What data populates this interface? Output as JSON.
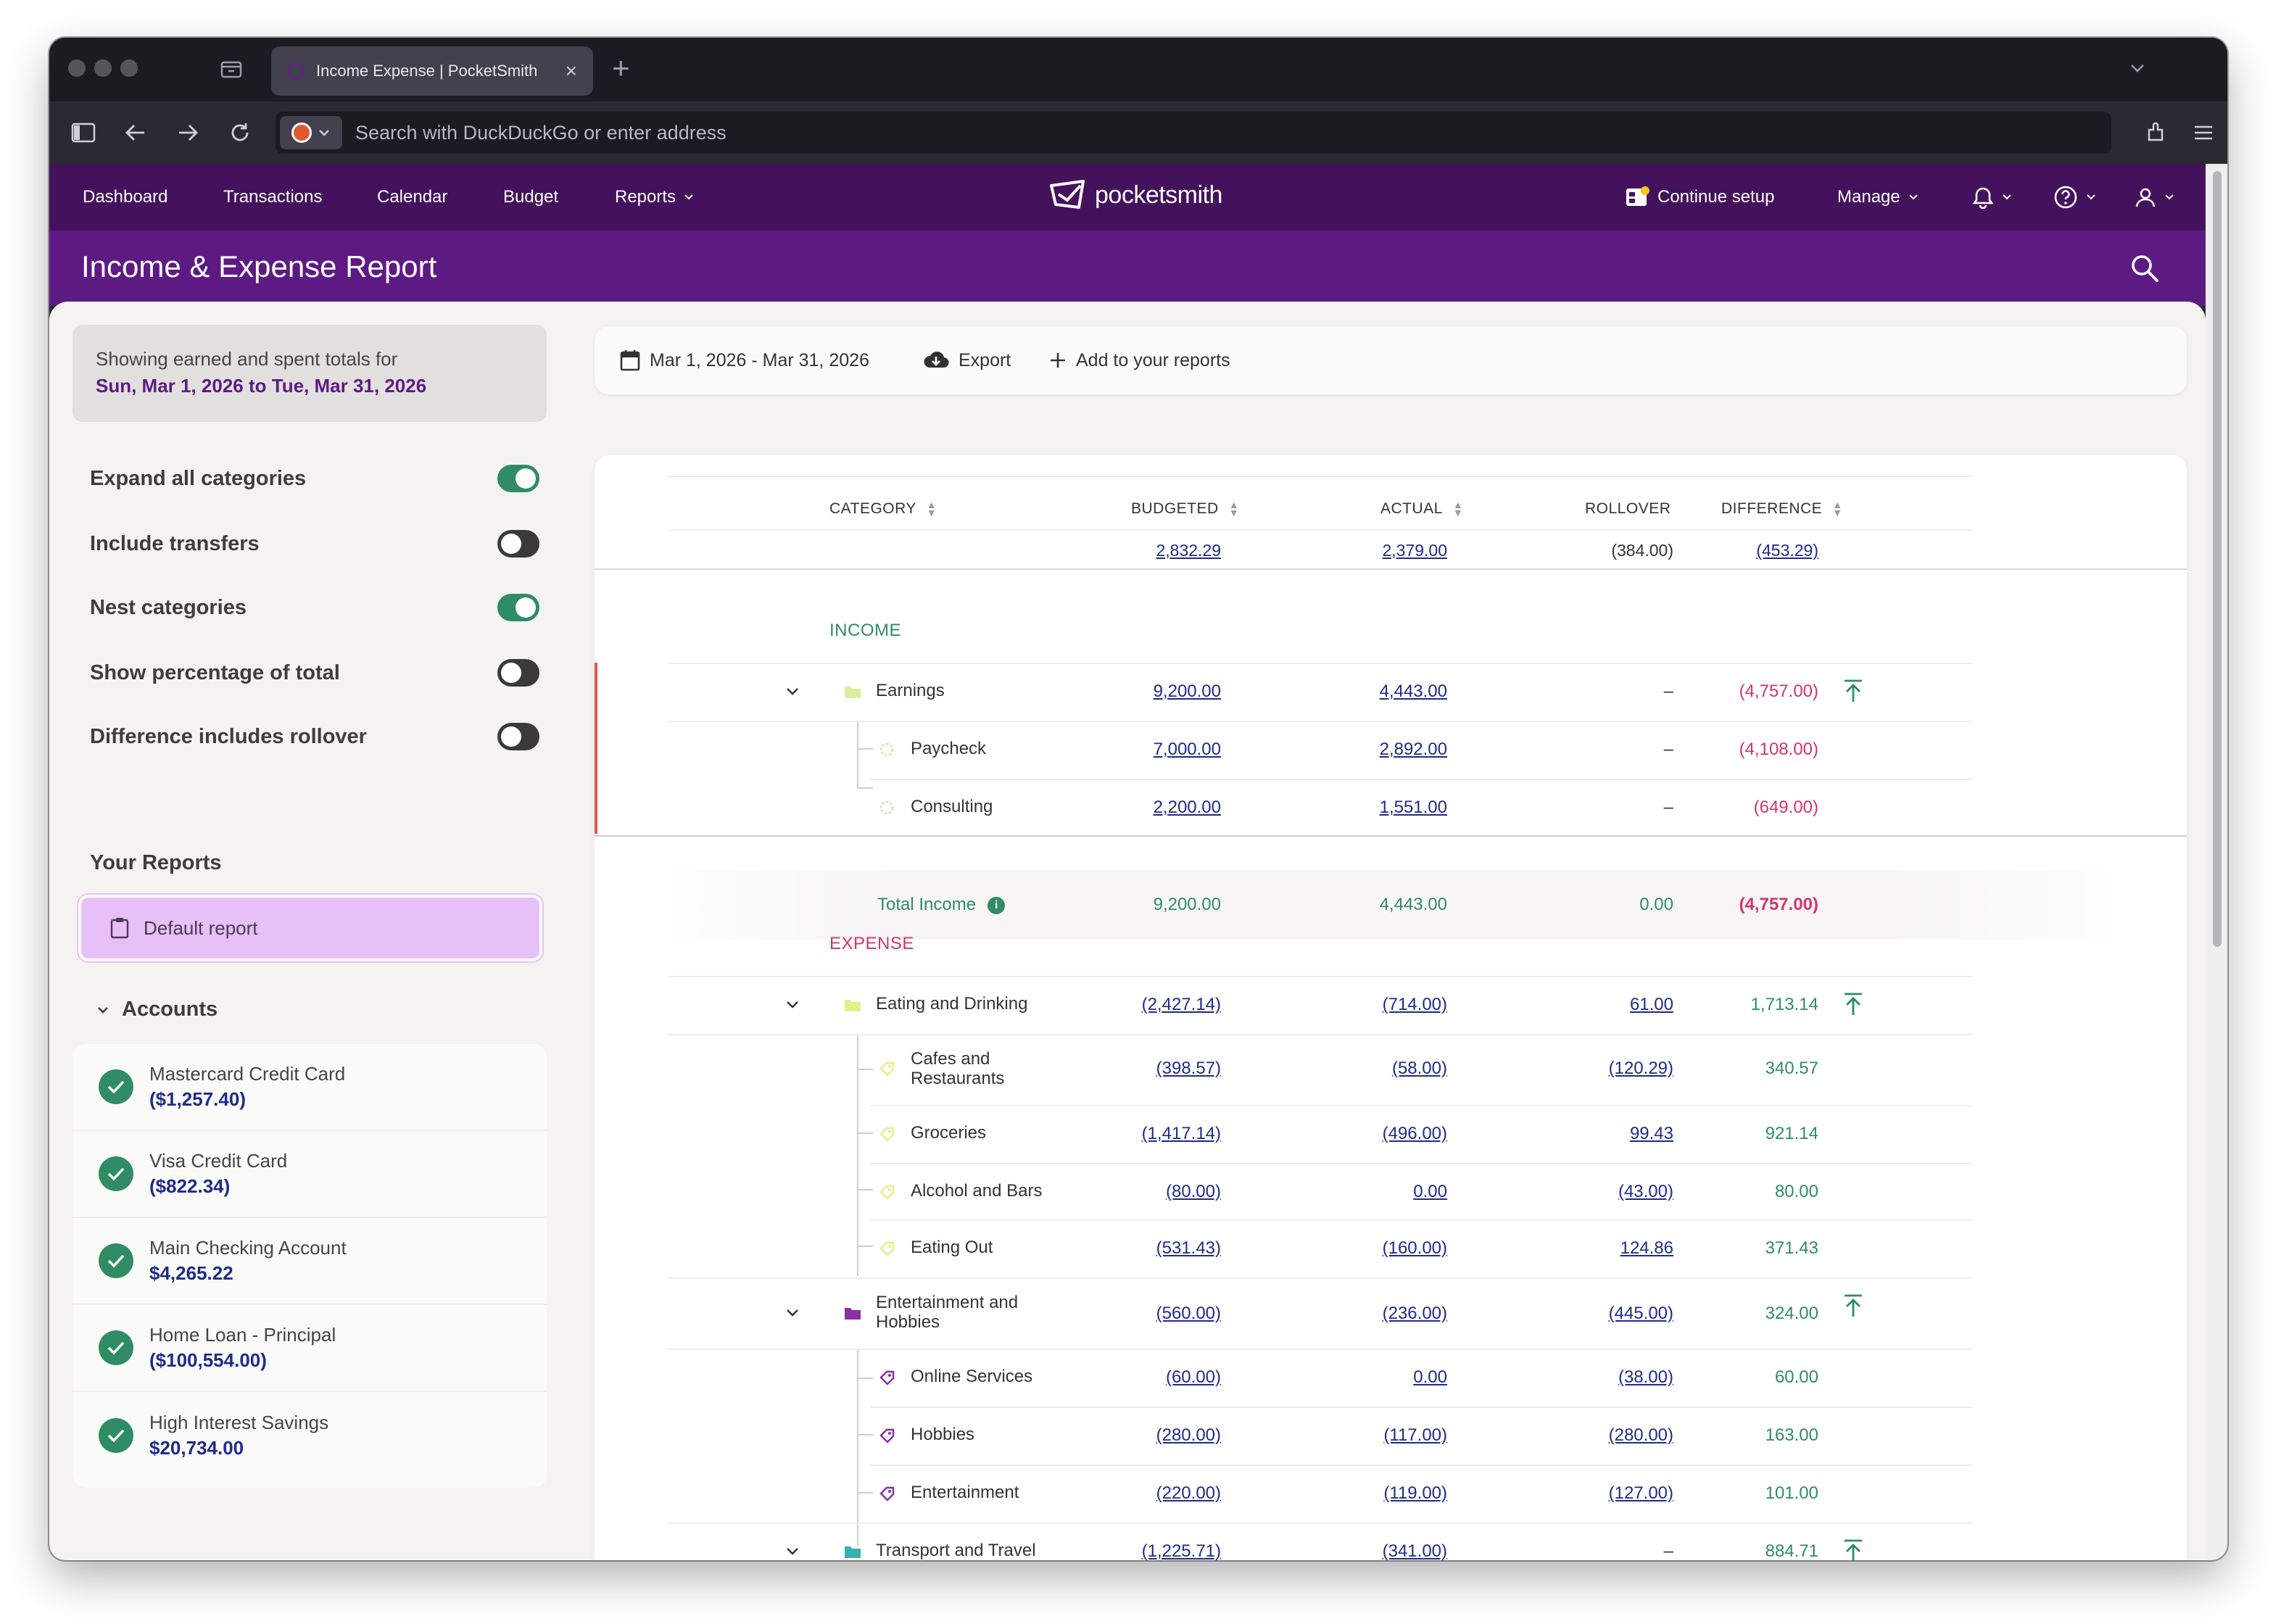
{
  "browser": {
    "tab_title": "Income Expense | PocketSmith",
    "address_placeholder": "Search with DuckDuckGo or enter address"
  },
  "nav": {
    "items": [
      "Dashboard",
      "Transactions",
      "Calendar",
      "Budget",
      "Reports"
    ],
    "logo": "pocketsmith",
    "continue_setup": "Continue setup",
    "manage": "Manage"
  },
  "page": {
    "title": "Income & Expense Report"
  },
  "sidebar": {
    "summary_line1": "Showing earned and spent totals for",
    "summary_range": "Sun, Mar 1, 2026 to Tue, Mar 31, 2026",
    "toggles": [
      {
        "label": "Expand all categories",
        "on": true
      },
      {
        "label": "Include transfers",
        "on": false
      },
      {
        "label": "Nest categories",
        "on": true
      },
      {
        "label": "Show percentage of total",
        "on": false
      },
      {
        "label": "Difference includes rollover",
        "on": false
      }
    ],
    "your_reports": "Your Reports",
    "default_report": "Default report",
    "accounts_title": "Accounts",
    "accounts": [
      {
        "name": "Mastercard Credit Card",
        "balance": "($1,257.40)"
      },
      {
        "name": "Visa Credit Card",
        "balance": "($822.34)"
      },
      {
        "name": "Main Checking Account",
        "balance": "$4,265.22"
      },
      {
        "name": "Home Loan - Principal",
        "balance": "($100,554.00)"
      },
      {
        "name": "High Interest Savings",
        "balance": "$20,734.00"
      }
    ]
  },
  "toolbar": {
    "date_range": "Mar 1, 2026 - Mar 31, 2026",
    "export": "Export",
    "add_reports": "Add to your reports"
  },
  "table": {
    "headers": {
      "category": "CATEGORY",
      "budgeted": "BUDGETED",
      "actual": "ACTUAL",
      "rollover": "ROLLOVER",
      "difference": "DIFFERENCE"
    },
    "totals": {
      "budgeted": "2,832.29",
      "actual": "2,379.00",
      "rollover": "(384.00)",
      "difference": "(453.29)"
    },
    "income_label": "INCOME",
    "expense_label": "EXPENSE",
    "total_income": {
      "label": "Total Income",
      "info": "i",
      "budgeted": "9,200.00",
      "actual": "4,443.00",
      "rollover": "0.00",
      "difference": "(4,757.00)"
    },
    "rows": [
      {
        "name": "Earnings",
        "budgeted": "9,200.00",
        "actual": "4,443.00",
        "rollover": "–",
        "difference": "(4,757.00)"
      },
      {
        "name": "Paycheck",
        "budgeted": "7,000.00",
        "actual": "2,892.00",
        "rollover": "–",
        "difference": "(4,108.00)"
      },
      {
        "name": "Consulting",
        "budgeted": "2,200.00",
        "actual": "1,551.00",
        "rollover": "–",
        "difference": "(649.00)"
      },
      {
        "name": "Eating and Drinking",
        "budgeted": "(2,427.14)",
        "actual": "(714.00)",
        "rollover": "61.00",
        "difference": "1,713.14"
      },
      {
        "name": "Cafes and Restaurants",
        "budgeted": "(398.57)",
        "actual": "(58.00)",
        "rollover": "(120.29)",
        "difference": "340.57"
      },
      {
        "name": "Groceries",
        "budgeted": "(1,417.14)",
        "actual": "(496.00)",
        "rollover": "99.43",
        "difference": "921.14"
      },
      {
        "name": "Alcohol and Bars",
        "budgeted": "(80.00)",
        "actual": "0.00",
        "rollover": "(43.00)",
        "difference": "80.00"
      },
      {
        "name": "Eating Out",
        "budgeted": "(531.43)",
        "actual": "(160.00)",
        "rollover": "124.86",
        "difference": "371.43"
      },
      {
        "name": "Entertainment and Hobbies",
        "budgeted": "(560.00)",
        "actual": "(236.00)",
        "rollover": "(445.00)",
        "difference": "324.00"
      },
      {
        "name": "Online Services",
        "budgeted": "(60.00)",
        "actual": "0.00",
        "rollover": "(38.00)",
        "difference": "60.00"
      },
      {
        "name": "Hobbies",
        "budgeted": "(280.00)",
        "actual": "(117.00)",
        "rollover": "(280.00)",
        "difference": "163.00"
      },
      {
        "name": "Entertainment",
        "budgeted": "(220.00)",
        "actual": "(119.00)",
        "rollover": "(127.00)",
        "difference": "101.00"
      },
      {
        "name": "Transport and Travel",
        "budgeted": "(1,225.71)",
        "actual": "(341.00)",
        "rollover": "–",
        "difference": "884.71"
      }
    ]
  },
  "colors": {
    "nav": "#44125c",
    "title_bar": "#5e1a83",
    "positive": "#2f8c64",
    "negative": "#d6336c",
    "link": "#1f2b8a",
    "income_folder": "#d9ef9f",
    "eating_folder": "#e4ef8a",
    "entertainment_folder": "#8a2fa0",
    "transport_folder": "#38b0ad"
  }
}
